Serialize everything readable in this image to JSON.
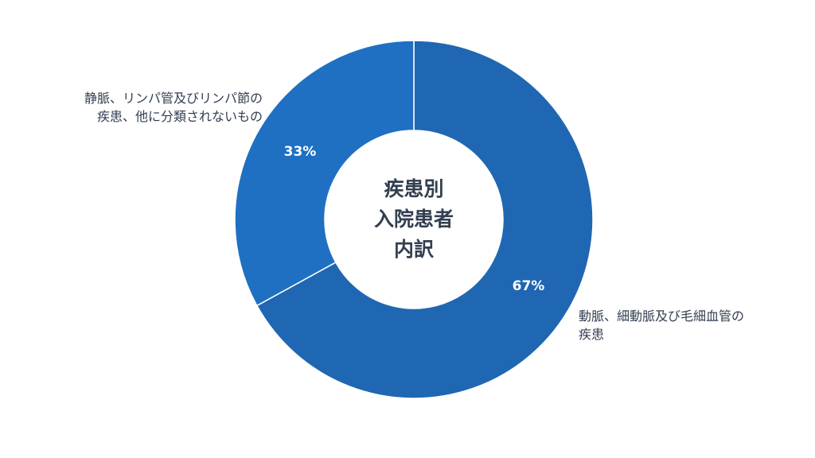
{
  "chart_data": {
    "type": "pie",
    "title_lines": [
      "疾患別",
      "入院患者",
      "内訳"
    ],
    "slices": [
      {
        "label_lines": [
          "動脈、細動脈及び毛細血管の",
          "疾患"
        ],
        "value": 67,
        "value_label": "67%",
        "color": "#1f67b2"
      },
      {
        "label_lines": [
          "静脈、リンパ管及びリンパ節の",
          "疾患、他に分類されないもの"
        ],
        "value": 33,
        "value_label": "33%",
        "color": "#1f70c2"
      }
    ]
  }
}
